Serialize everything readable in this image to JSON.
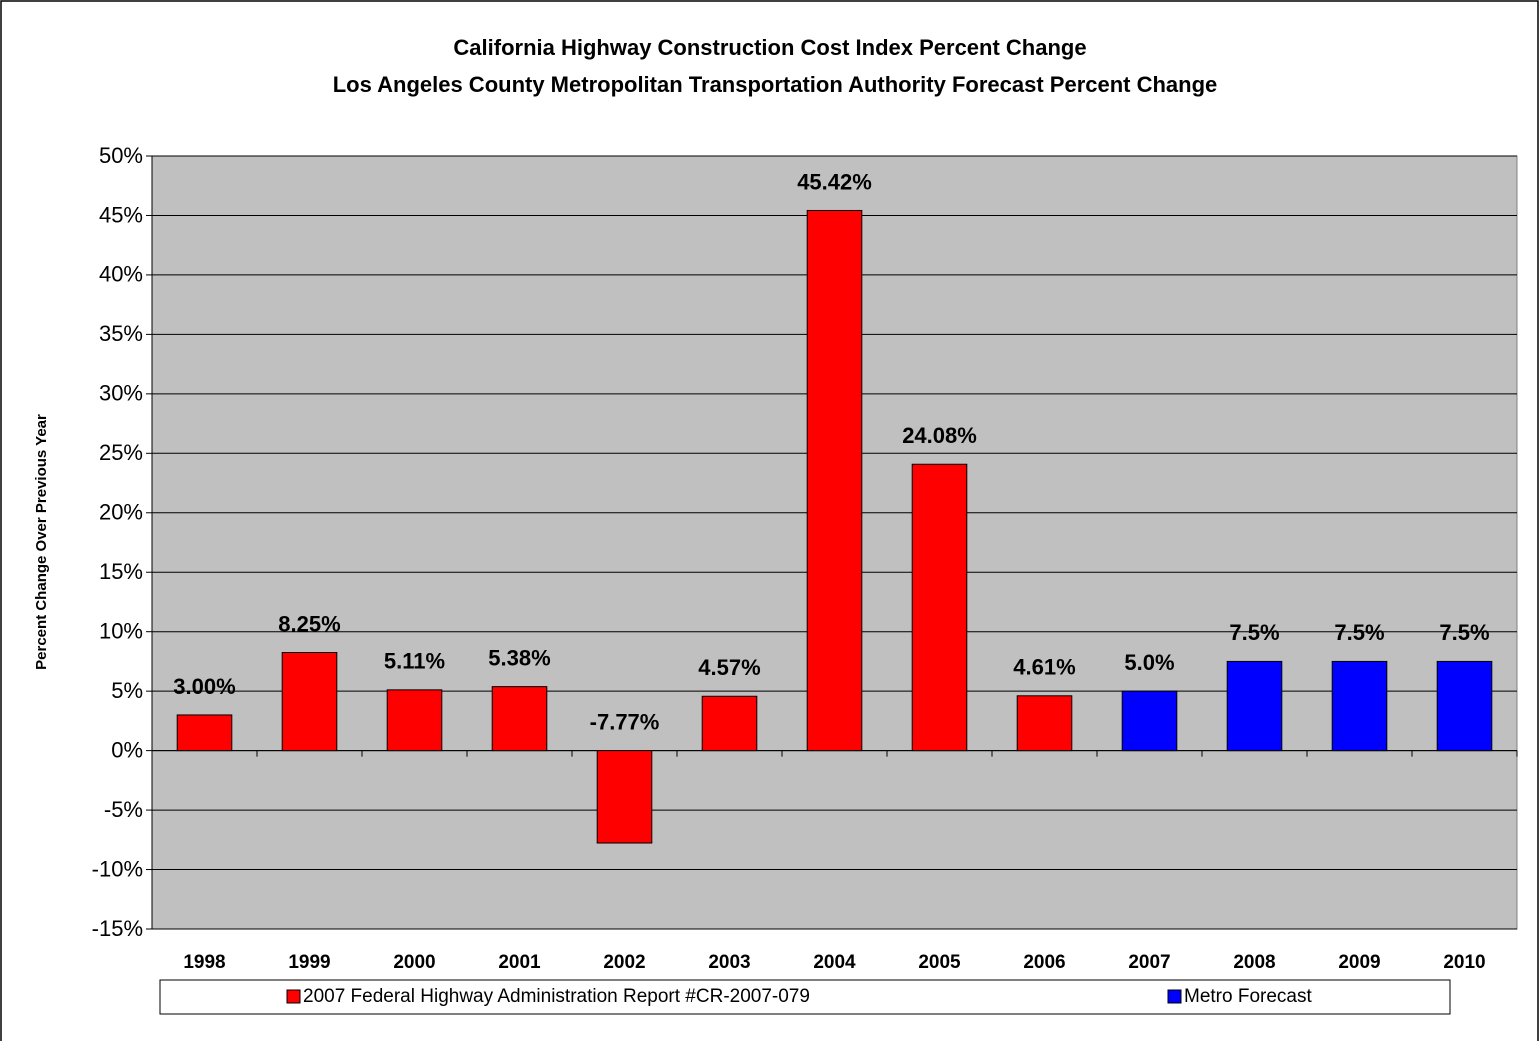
{
  "chart_data": {
    "type": "bar",
    "title": "California Highway Construction Cost Index Percent Change",
    "subtitle": "Los Angeles County Metropolitan Transportation Authority Forecast Percent Change",
    "y_label": "Percent Change Over Previous Year",
    "categories": [
      "1998",
      "1999",
      "2000",
      "2001",
      "2002",
      "2003",
      "2004",
      "2005",
      "2006",
      "2007",
      "2008",
      "2009",
      "2010"
    ],
    "series": [
      {
        "name": "2007 Federal Highway Administration Report #CR-2007-079",
        "color": "#ff0000",
        "values": [
          3.0,
          8.25,
          5.11,
          5.38,
          -7.77,
          4.57,
          45.42,
          24.08,
          4.61,
          null,
          null,
          null,
          null
        ],
        "value_labels": [
          "3.00%",
          "8.25%",
          "5.11%",
          "5.38%",
          "-7.77%",
          "4.57%",
          "45.42%",
          "24.08%",
          "4.61%",
          null,
          null,
          null,
          null
        ]
      },
      {
        "name": "Metro Forecast",
        "color": "#0000ff",
        "values": [
          null,
          null,
          null,
          null,
          null,
          null,
          null,
          null,
          null,
          5.0,
          7.5,
          7.5,
          7.5
        ],
        "value_labels": [
          null,
          null,
          null,
          null,
          null,
          null,
          null,
          null,
          null,
          "5.0%",
          "7.5%",
          "7.5%",
          "7.5%"
        ]
      }
    ],
    "ylim": [
      -15,
      50
    ],
    "yticks": [
      {
        "value": -15,
        "label": "-15%"
      },
      {
        "value": -10,
        "label": "-10%"
      },
      {
        "value": -5,
        "label": "-5%"
      },
      {
        "value": 0,
        "label": "0%"
      },
      {
        "value": 5,
        "label": "5%"
      },
      {
        "value": 10,
        "label": "10%"
      },
      {
        "value": 15,
        "label": "15%"
      },
      {
        "value": 20,
        "label": "20%"
      },
      {
        "value": 25,
        "label": "25%"
      },
      {
        "value": 30,
        "label": "30%"
      },
      {
        "value": 35,
        "label": "35%"
      },
      {
        "value": 40,
        "label": "40%"
      },
      {
        "value": 45,
        "label": "45%"
      },
      {
        "value": 50,
        "label": "50%"
      }
    ],
    "grid": true,
    "plot_background": "#c0c0c0",
    "legend": "bottom"
  }
}
